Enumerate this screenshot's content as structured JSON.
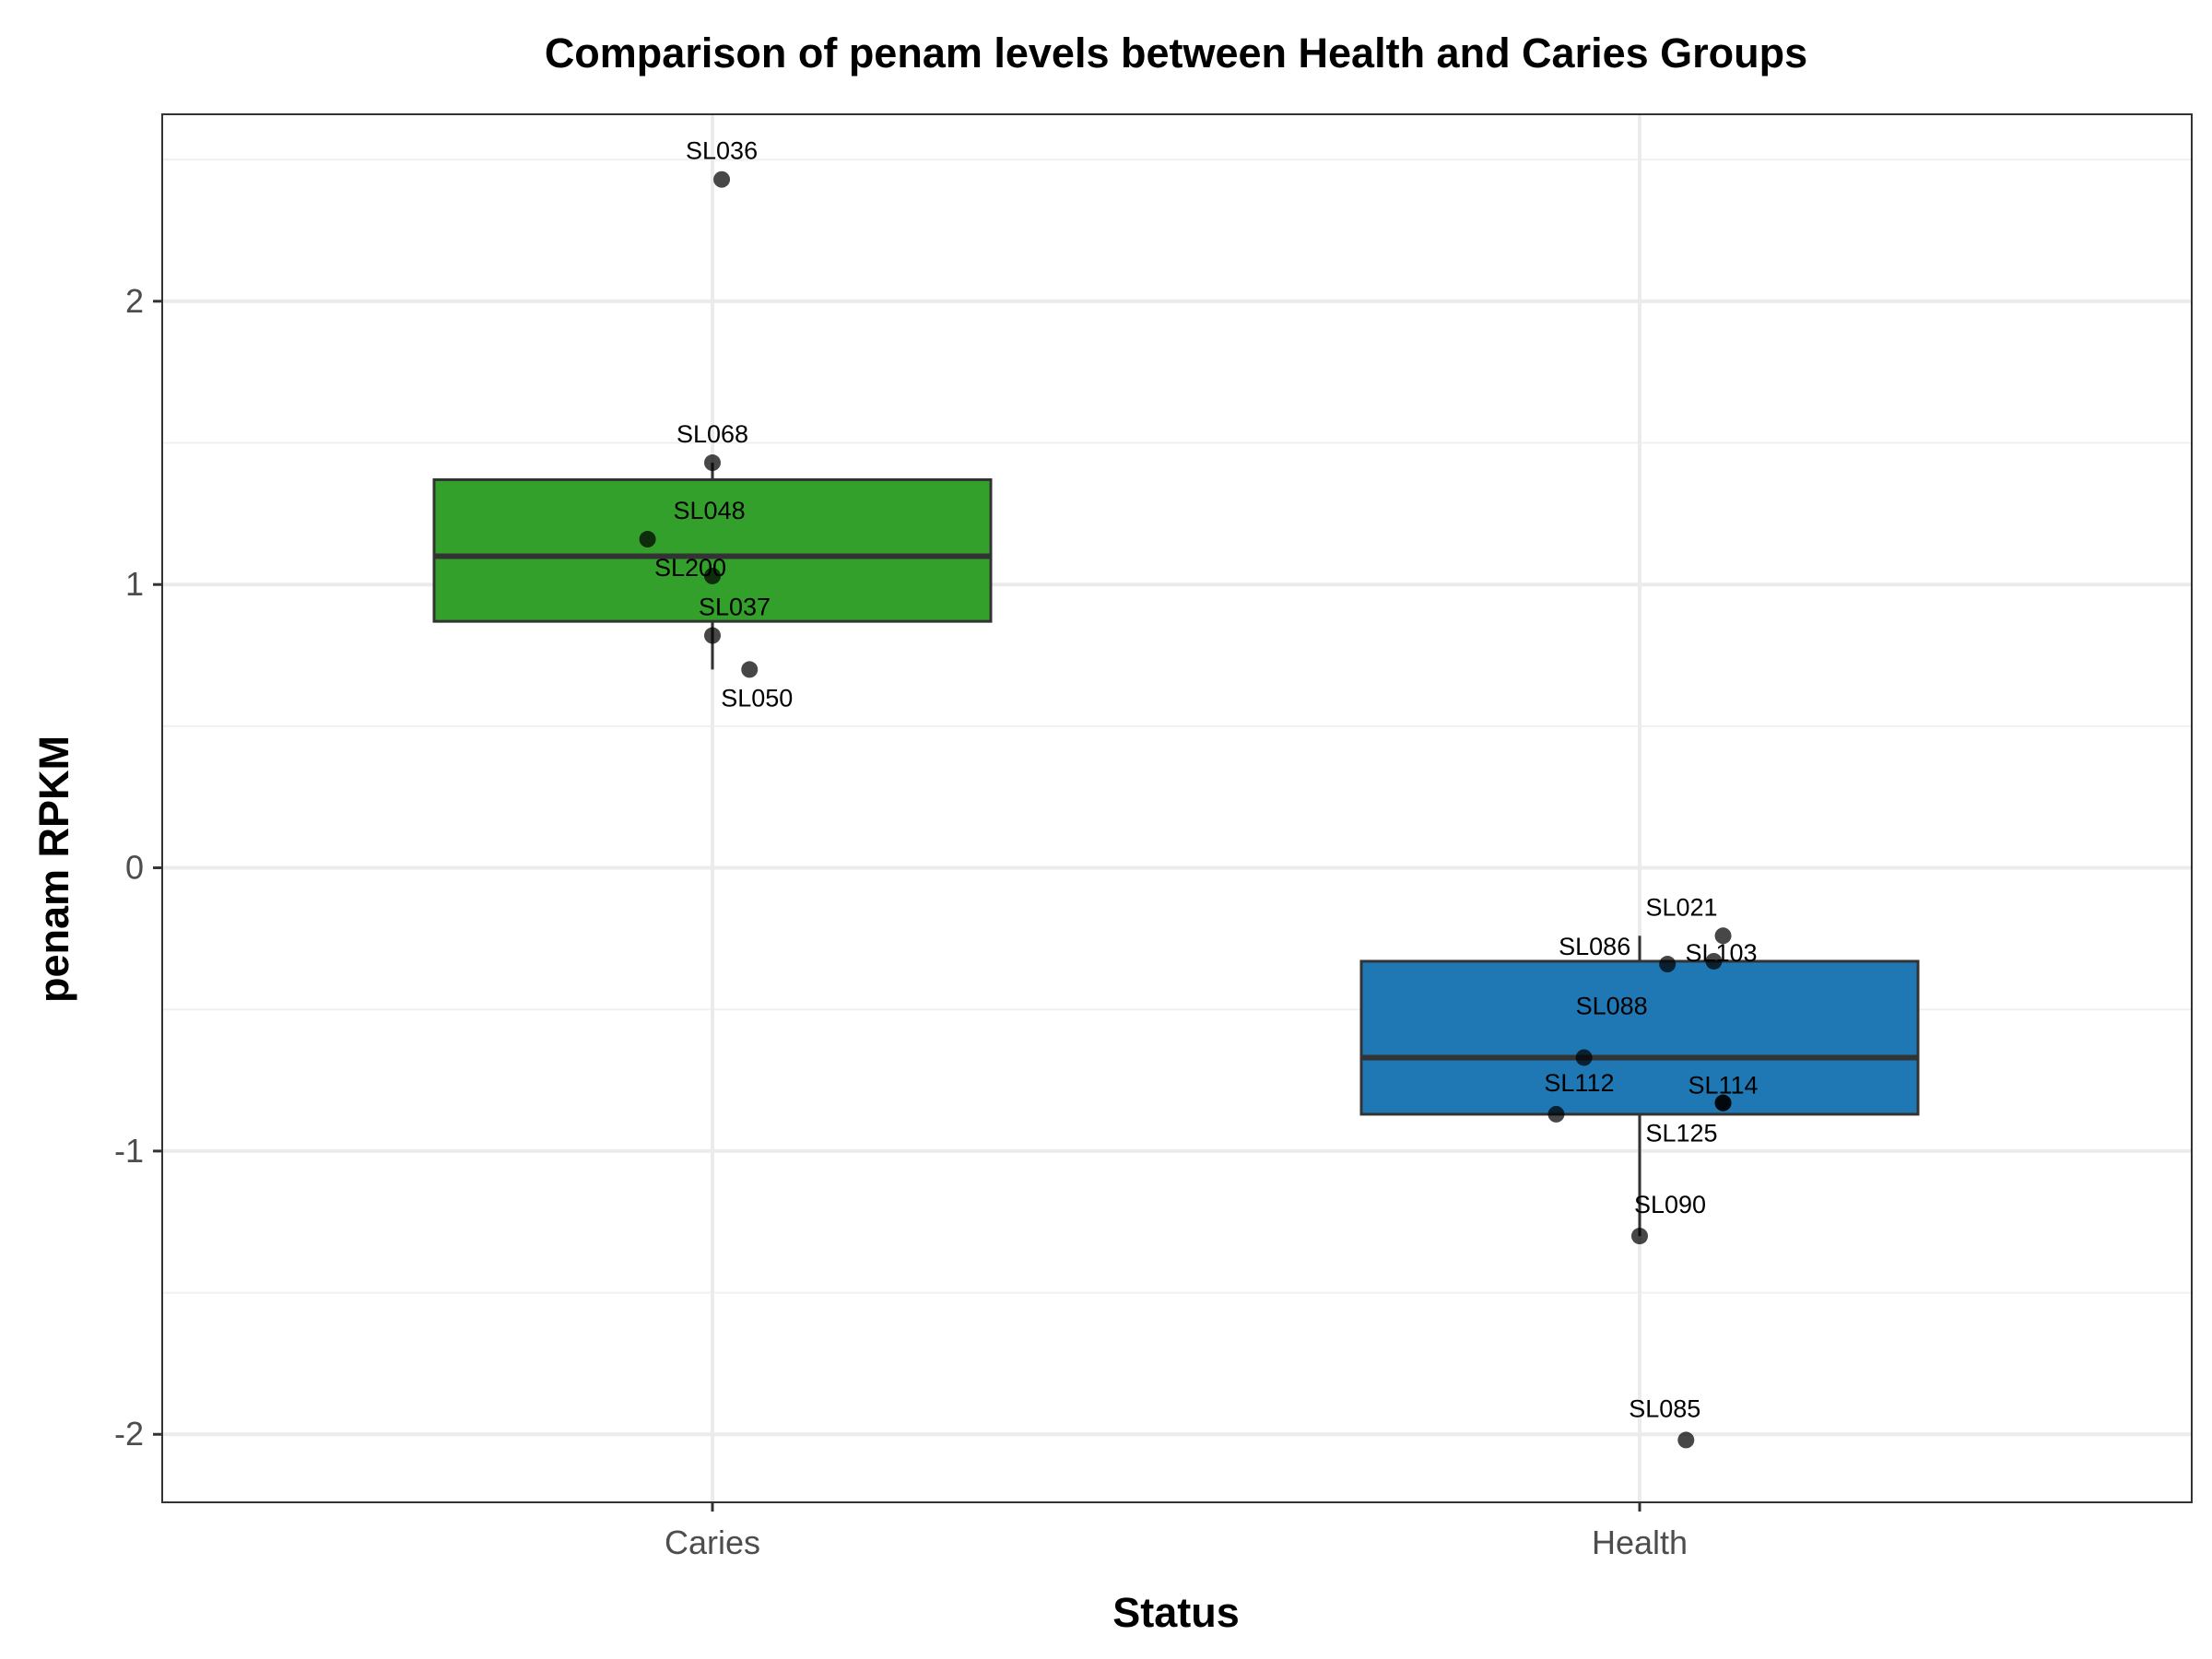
{
  "chart_data": {
    "type": "box",
    "title": "Comparison of penam levels between Health and Caries Groups",
    "xlabel": "Status",
    "ylabel": "penam RPKM",
    "categories": [
      "Caries",
      "Health"
    ],
    "ylim": [
      -2.24,
      2.66
    ],
    "yticks": [
      -2,
      -1,
      0,
      1,
      2
    ],
    "grid": true,
    "boxes": [
      {
        "category": "Caries",
        "color": "#33a02c",
        "q1": 0.87,
        "median": 1.1,
        "q3": 1.37,
        "whisker_low": 0.7,
        "whisker_high": 1.43
      },
      {
        "category": "Health",
        "color": "#1f78b4",
        "q1": -0.87,
        "median": -0.67,
        "q3": -0.33,
        "whisker_low": -1.3,
        "whisker_high": -0.24
      }
    ],
    "points": [
      {
        "category": "Caries",
        "label": "SL036",
        "y": 2.43,
        "jitter": 0.01
      },
      {
        "category": "Caries",
        "label": "SL068",
        "y": 1.43,
        "jitter": 0.0
      },
      {
        "category": "Caries",
        "label": "SL048",
        "y": 1.16,
        "jitter": -0.07
      },
      {
        "category": "Caries",
        "label": "SL200",
        "y": 1.03,
        "jitter": 0.0
      },
      {
        "category": "Caries",
        "label": "SL037",
        "y": 0.82,
        "jitter": 0.0
      },
      {
        "category": "Caries",
        "label": "SL050",
        "y": 0.7,
        "jitter": 0.04
      },
      {
        "category": "Health",
        "label": "SL021",
        "y": -0.24,
        "jitter": 0.09
      },
      {
        "category": "Health",
        "label": "SL086",
        "y": -0.34,
        "jitter": 0.03
      },
      {
        "category": "Health",
        "label": "SL103",
        "y": -0.33,
        "jitter": 0.08
      },
      {
        "category": "Health",
        "label": "SL088",
        "y": -0.67,
        "jitter": -0.06
      },
      {
        "category": "Health",
        "label": "SL112",
        "y": -0.87,
        "jitter": -0.09
      },
      {
        "category": "Health",
        "label": "SL114",
        "y": -0.83,
        "jitter": 0.09
      },
      {
        "category": "Health",
        "label": "SL125",
        "y": -0.83,
        "jitter": 0.09
      },
      {
        "category": "Health",
        "label": "SL090",
        "y": -1.3,
        "jitter": 0.0
      },
      {
        "category": "Health",
        "label": "SL085",
        "y": -2.02,
        "jitter": 0.05
      }
    ]
  }
}
